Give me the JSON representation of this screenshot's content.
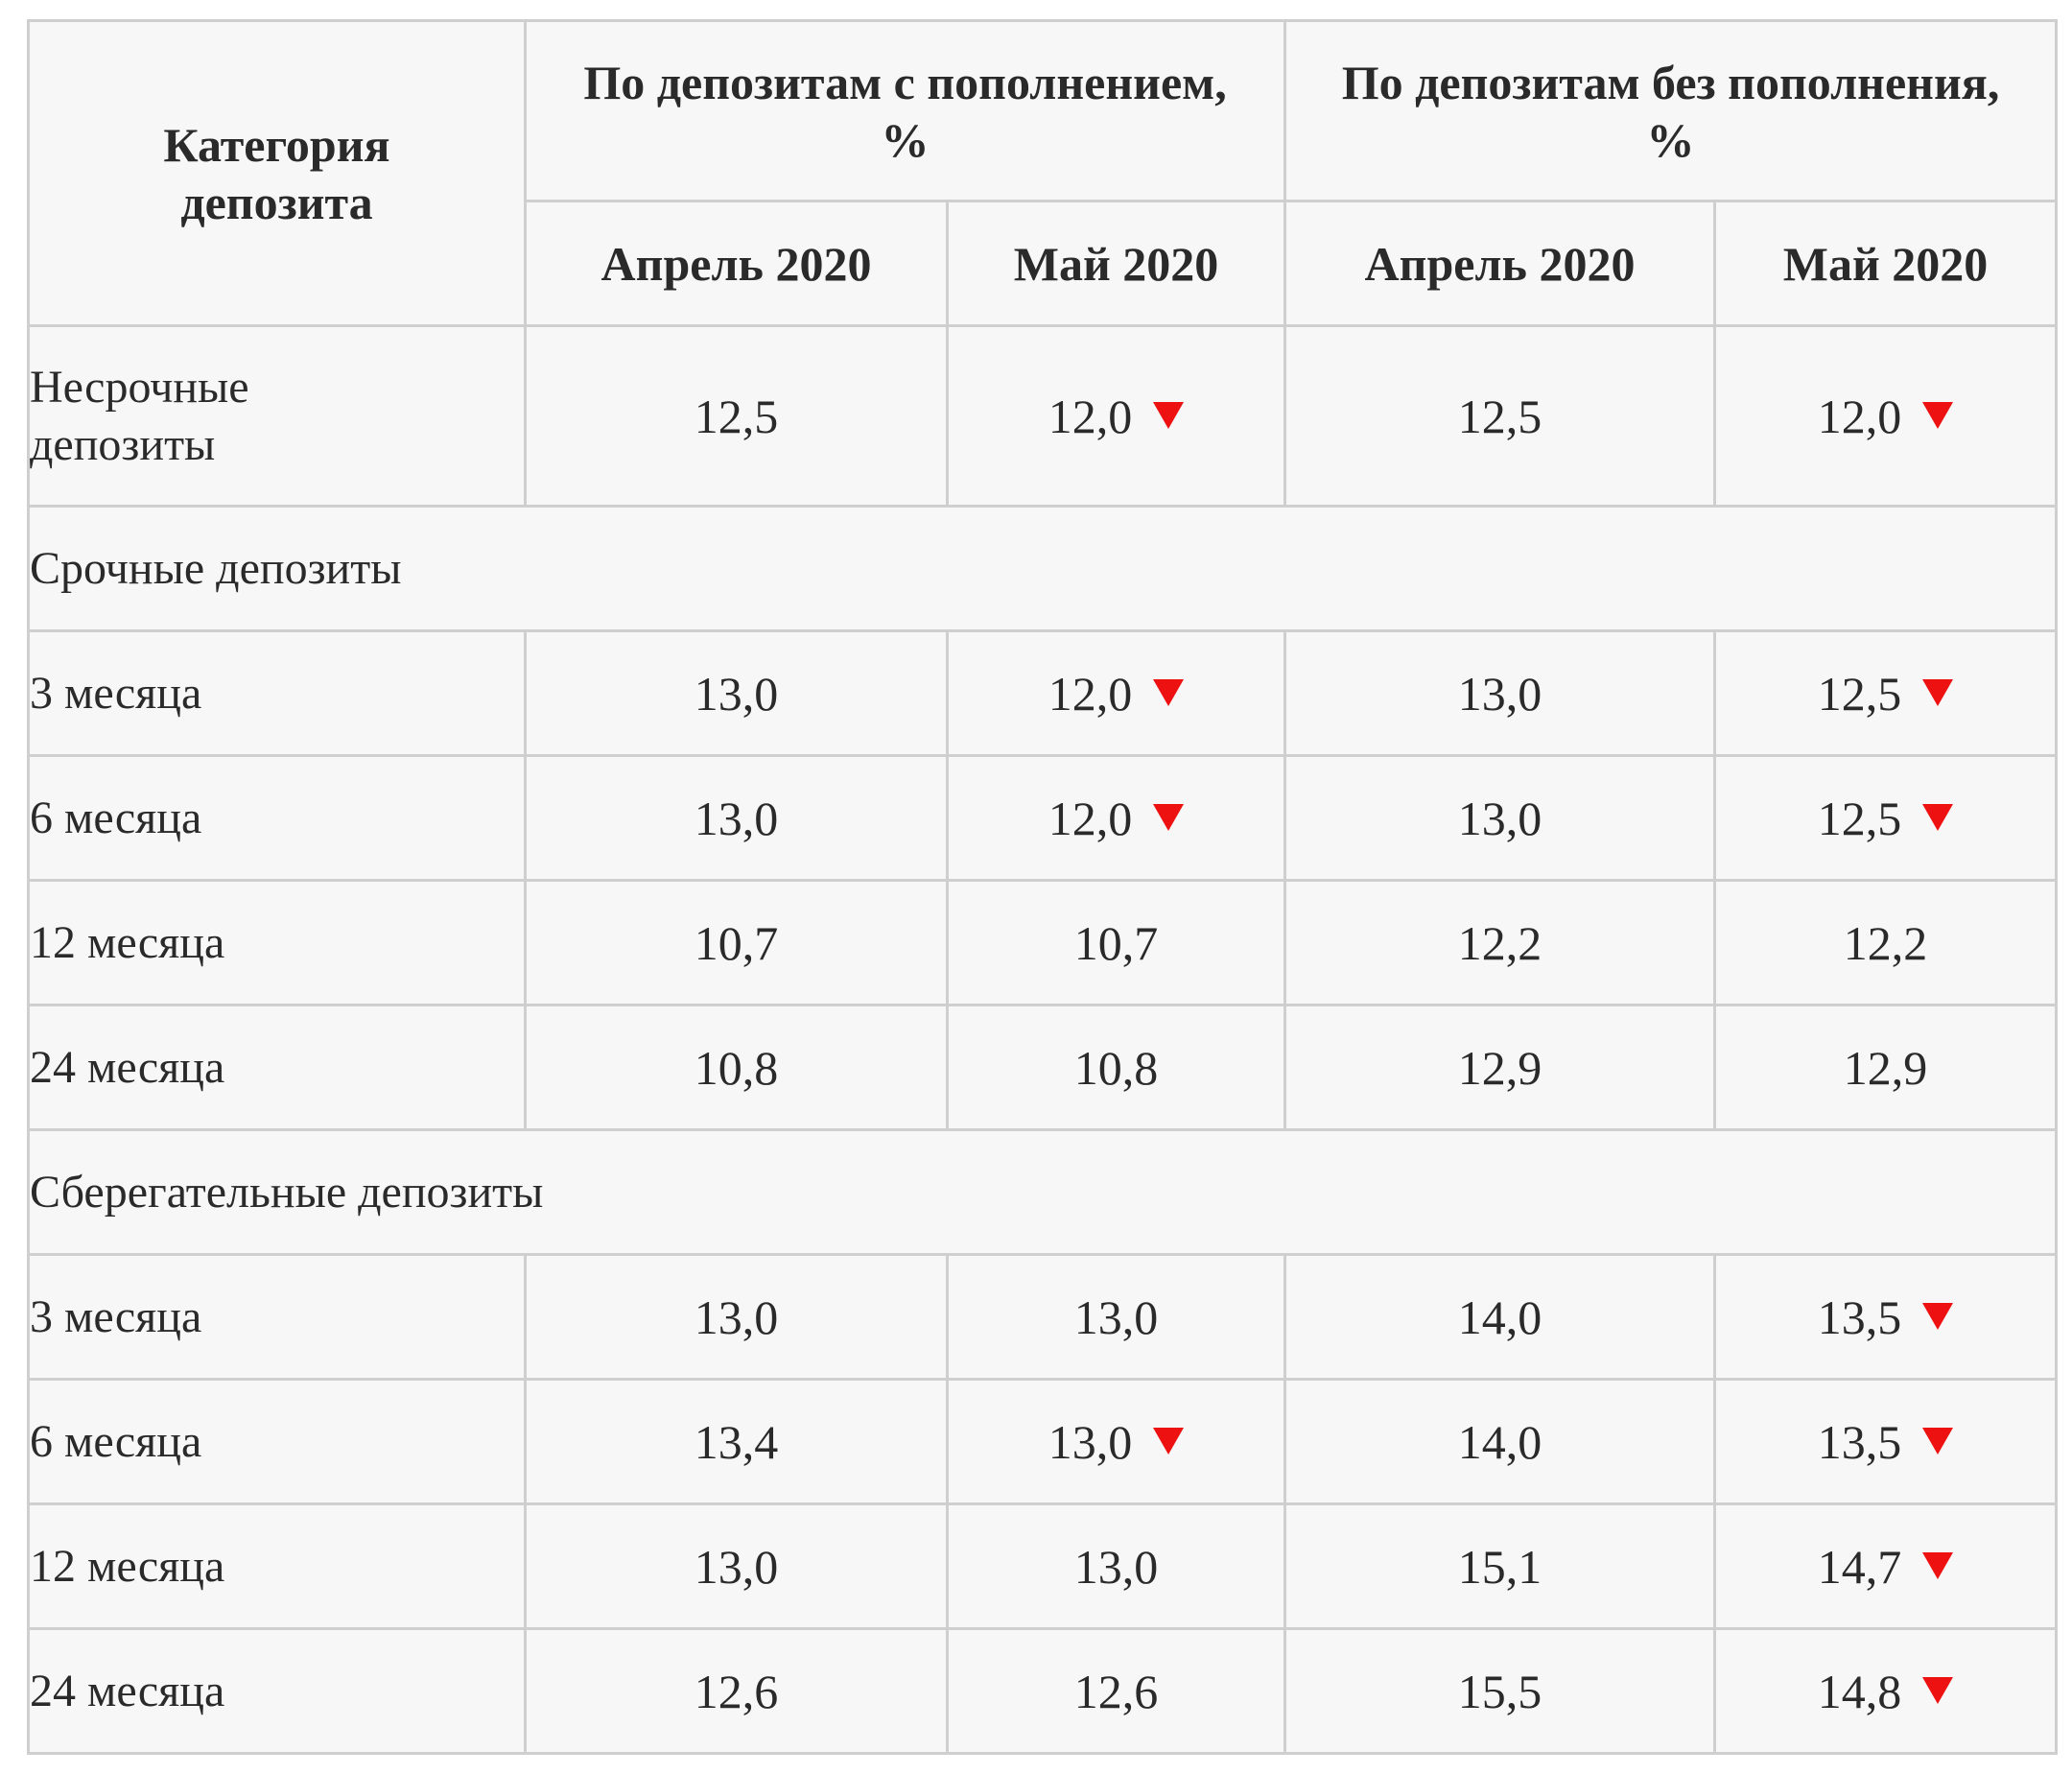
{
  "table": {
    "header": {
      "category": "Категория депозита",
      "group_with": "По депозитам с пополнением, %",
      "group_without": "По депозитам без пополнения, %",
      "periods": [
        "Апрель 2020",
        "Май 2020",
        "Апрель 2020",
        "Май 2020"
      ]
    },
    "arrow_color": "#ee1111",
    "header_color": "#143a7a",
    "sections": [
      {
        "title": "",
        "rows": [
          {
            "label": "Несрочные депозиты",
            "values": [
              "12,5",
              "12,0",
              "12,5",
              "12,0"
            ],
            "down": [
              false,
              true,
              false,
              true
            ]
          }
        ]
      },
      {
        "title": "Срочные депозиты",
        "rows": [
          {
            "label": "3 месяца",
            "values": [
              "13,0",
              "12,0",
              "13,0",
              "12,5"
            ],
            "down": [
              false,
              true,
              false,
              true
            ]
          },
          {
            "label": "6 месяца",
            "values": [
              "13,0",
              "12,0",
              "13,0",
              "12,5"
            ],
            "down": [
              false,
              true,
              false,
              true
            ]
          },
          {
            "label": "12 месяца",
            "values": [
              "10,7",
              "10,7",
              "12,2",
              "12,2"
            ],
            "down": [
              false,
              false,
              false,
              false
            ]
          },
          {
            "label": "24 месяца",
            "values": [
              "10,8",
              "10,8",
              "12,9",
              "12,9"
            ],
            "down": [
              false,
              false,
              false,
              false
            ]
          }
        ]
      },
      {
        "title": "Сберегательные депозиты",
        "rows": [
          {
            "label": "3 месяца",
            "values": [
              "13,0",
              "13,0",
              "14,0",
              "13,5"
            ],
            "down": [
              false,
              false,
              false,
              true
            ]
          },
          {
            "label": "6 месяца",
            "values": [
              "13,4",
              "13,0",
              "14,0",
              "13,5"
            ],
            "down": [
              false,
              true,
              false,
              true
            ]
          },
          {
            "label": "12 месяца",
            "values": [
              "13,0",
              "13,0",
              "15,1",
              "14,7"
            ],
            "down": [
              false,
              false,
              false,
              true
            ]
          },
          {
            "label": "24 месяца",
            "values": [
              "12,6",
              "12,6",
              "15,5",
              "14,8"
            ],
            "down": [
              false,
              false,
              false,
              true
            ]
          }
        ]
      }
    ]
  }
}
